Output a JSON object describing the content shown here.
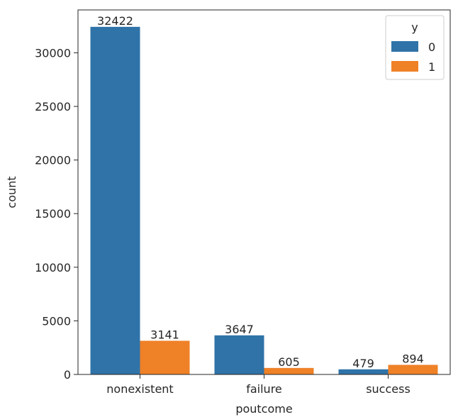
{
  "chart_data": {
    "type": "bar",
    "categories": [
      "nonexistent",
      "failure",
      "success"
    ],
    "series": [
      {
        "name": "0",
        "values": [
          32422,
          3647,
          479
        ],
        "color": "#2f73a8"
      },
      {
        "name": "1",
        "values": [
          3141,
          605,
          894
        ],
        "color": "#ef8127"
      }
    ],
    "xlabel": "poutcome",
    "ylabel": "count",
    "ylim": [
      0,
      34000
    ],
    "yticks": [
      0,
      5000,
      10000,
      15000,
      20000,
      25000,
      30000
    ],
    "legend": {
      "title": "y",
      "position": "top-right"
    },
    "grid": false
  }
}
